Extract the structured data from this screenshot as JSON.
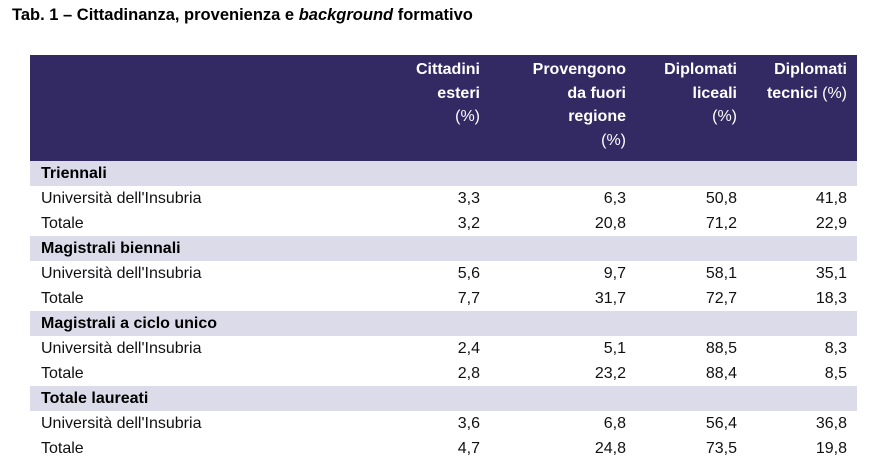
{
  "title": {
    "prefix": "Tab. 1 – Cittadinanza, provenienza e ",
    "italic": "background",
    "suffix": " formativo"
  },
  "columns": [
    {
      "lines": [
        "Cittadini",
        "esteri"
      ],
      "unit": "(%)",
      "unit_inline": false
    },
    {
      "lines": [
        "Provengono",
        "da fuori",
        "regione"
      ],
      "unit": "(%)",
      "unit_inline": false
    },
    {
      "lines": [
        "Diplomati",
        "liceali"
      ],
      "unit": "(%)",
      "unit_inline": false
    },
    {
      "lines": [
        "Diplomati",
        "tecnici"
      ],
      "unit": "(%)",
      "unit_inline": true
    }
  ],
  "groups": [
    {
      "label": "Triennali",
      "rows": [
        {
          "label": "Università dell'Insubria",
          "values": [
            "3,3",
            "6,3",
            "50,8",
            "41,8"
          ]
        },
        {
          "label": "Totale",
          "values": [
            "3,2",
            "20,8",
            "71,2",
            "22,9"
          ]
        }
      ]
    },
    {
      "label": "Magistrali biennali",
      "rows": [
        {
          "label": "Università dell'Insubria",
          "values": [
            "5,6",
            "9,7",
            "58,1",
            "35,1"
          ]
        },
        {
          "label": "Totale",
          "values": [
            "7,7",
            "31,7",
            "72,7",
            "18,3"
          ]
        }
      ]
    },
    {
      "label": "Magistrali a ciclo unico",
      "rows": [
        {
          "label": "Università dell'Insubria",
          "values": [
            "2,4",
            "5,1",
            "88,5",
            "8,3"
          ]
        },
        {
          "label": "Totale",
          "values": [
            "2,8",
            "23,2",
            "88,4",
            "8,5"
          ]
        }
      ]
    },
    {
      "label": "Totale laureati",
      "rows": [
        {
          "label": "Università dell'Insubria",
          "values": [
            "3,6",
            "6,8",
            "56,4",
            "36,8"
          ]
        },
        {
          "label": "Totale",
          "values": [
            "4,7",
            "24,8",
            "73,5",
            "19,8"
          ]
        }
      ]
    }
  ],
  "colors": {
    "header_bg": "#342a63",
    "group_bg": "#dcdbe9",
    "header_text": "#ffffff"
  }
}
